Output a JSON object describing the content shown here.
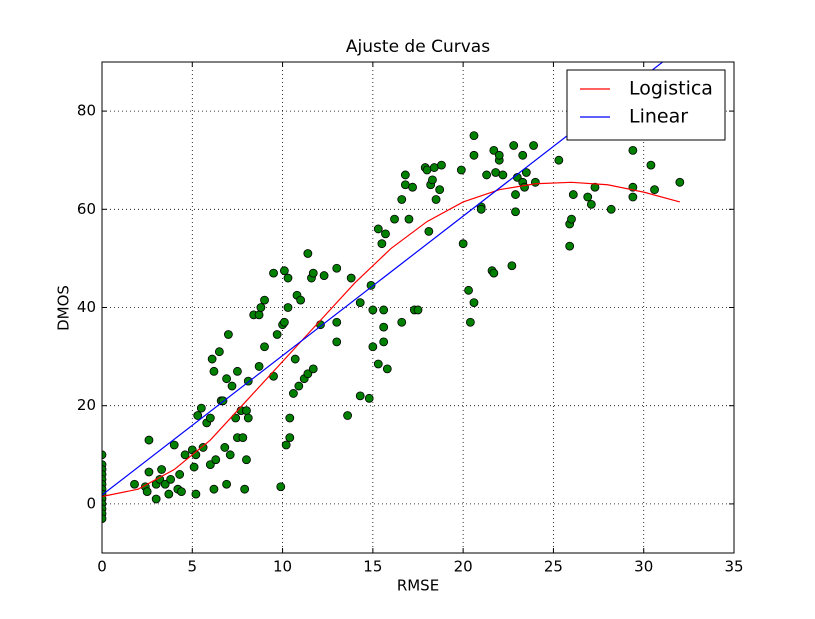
{
  "chart_data": {
    "type": "scatter",
    "title": "Ajuste de Curvas",
    "x_label": "RMSE",
    "y_label": "DMOS",
    "xlim": [
      0,
      35
    ],
    "ylim": [
      -10,
      90
    ],
    "xticks": [
      0,
      5,
      10,
      15,
      20,
      25,
      30,
      35
    ],
    "yticks": [
      0,
      20,
      40,
      60,
      80
    ],
    "grid": true,
    "legend": "upper right",
    "series": [
      {
        "style": "marker",
        "color": "#008000",
        "x": [
          0,
          0,
          0,
          0,
          0,
          0,
          0,
          0,
          0,
          0,
          0,
          0,
          0,
          1.8,
          2.4,
          2.5,
          2.6,
          2.6,
          3,
          3,
          3.2,
          3.3,
          3.5,
          3.7,
          3.8,
          4,
          4.2,
          4.3,
          4.4,
          4.6,
          5,
          5.1,
          5.2,
          5.2,
          5.3,
          5.5,
          5.6,
          5.8,
          6,
          6,
          6.1,
          6.2,
          6.3,
          6.2,
          6.5,
          6.6,
          6.7,
          6.8,
          6.9,
          6.9,
          7,
          7.1,
          7.2,
          7.4,
          7.5,
          7.5,
          7.7,
          7.8,
          7.9,
          8,
          8,
          8.1,
          8.1,
          8.4,
          8.7,
          8.7,
          8.8,
          9,
          9,
          9.5,
          9.5,
          9.7,
          9.9,
          10,
          10.1,
          10.1,
          10.2,
          10.3,
          10.3,
          10.4,
          10.4,
          10.6,
          10.7,
          10.8,
          10.9,
          11,
          11.2,
          11.4,
          11.4,
          11.6,
          11.7,
          11.7,
          12.1,
          12.3,
          13,
          13,
          13,
          13.6,
          13.8,
          14.3,
          14.3,
          14.8,
          14.9,
          15,
          15,
          15.3,
          15.3,
          15.5,
          15.6,
          15.6,
          15.6,
          15.7,
          15.8,
          16.2,
          16.6,
          16.6,
          16.8,
          16.8,
          17,
          17.2,
          17.3,
          17.5,
          17.9,
          18,
          18.1,
          18.2,
          18.3,
          18.4,
          18.5,
          18.7,
          18.8,
          19.9,
          20,
          20.3,
          20.4,
          20.6,
          20.6,
          20.6,
          21,
          21,
          21.3,
          21.6,
          21.7,
          21.7,
          21.8,
          22,
          22,
          22.2,
          22.7,
          22.8,
          22.9,
          22.9,
          23,
          23.3,
          23.3,
          23.4,
          23.5,
          23.9,
          24,
          25.3,
          25.9,
          25.9,
          26,
          26.1,
          26.9,
          27.1,
          27.3,
          28.2,
          29.4,
          29.4,
          29.4,
          30.4,
          30.6,
          32
        ],
        "values": [
          10,
          8,
          7,
          6,
          5,
          4,
          3,
          2,
          1,
          0,
          -1,
          -2,
          -3,
          4,
          3.5,
          2.5,
          6.5,
          13,
          1,
          4,
          5,
          7,
          4,
          2,
          5,
          12,
          3,
          6,
          2.5,
          10,
          11,
          7.5,
          2,
          10,
          18,
          19.5,
          11.5,
          16.5,
          8,
          17.5,
          29.5,
          27,
          9,
          3,
          31,
          21,
          21,
          11.5,
          25.5,
          4,
          34.5,
          10,
          24,
          17.5,
          13.5,
          27,
          19,
          13.5,
          3,
          19,
          9,
          25,
          17.5,
          38.5,
          38.5,
          28,
          40,
          32,
          41.5,
          47,
          26,
          34.5,
          3.5,
          36.5,
          37,
          47.5,
          12,
          46,
          40,
          17.5,
          13.5,
          22.5,
          29.5,
          42.5,
          24,
          41.5,
          25.5,
          51,
          26.5,
          46,
          47,
          27.5,
          36.5,
          46.5,
          48,
          37,
          33,
          18,
          46,
          41,
          22,
          21.5,
          44.5,
          39.5,
          32,
          28.5,
          56,
          53,
          36,
          39.5,
          33,
          55,
          27.5,
          58,
          37,
          62,
          65,
          67,
          58,
          64.5,
          39.5,
          39.5,
          68.5,
          68,
          55.5,
          65,
          66,
          68.5,
          62,
          64,
          69,
          68,
          53,
          43.5,
          37,
          41,
          71,
          75,
          60.5,
          60,
          67,
          47.5,
          47,
          72,
          67.5,
          70,
          71,
          67,
          48.5,
          73,
          59.5,
          63,
          66.5,
          71,
          65.5,
          64.5,
          67.5,
          73,
          65.5,
          70,
          52.5,
          57,
          58,
          63,
          62.5,
          61,
          64.5,
          60,
          72,
          64.5,
          62.5,
          69,
          64,
          65.5
        ]
      },
      {
        "name": "Logistica",
        "style": "line",
        "color": "#ff0000",
        "x": [
          0,
          2,
          4,
          6,
          8,
          10,
          12,
          14,
          16,
          18,
          20,
          22,
          24,
          26,
          28,
          30,
          32
        ],
        "values": [
          1.5,
          3,
          7,
          13,
          21,
          29,
          37,
          45,
          52,
          57.5,
          61.5,
          64,
          65.2,
          65.5,
          65,
          63.5,
          61.5
        ]
      },
      {
        "name": "Linear",
        "style": "line",
        "color": "#0000ff",
        "x": [
          0,
          32
        ],
        "values": [
          1.8,
          92.7
        ]
      }
    ]
  }
}
